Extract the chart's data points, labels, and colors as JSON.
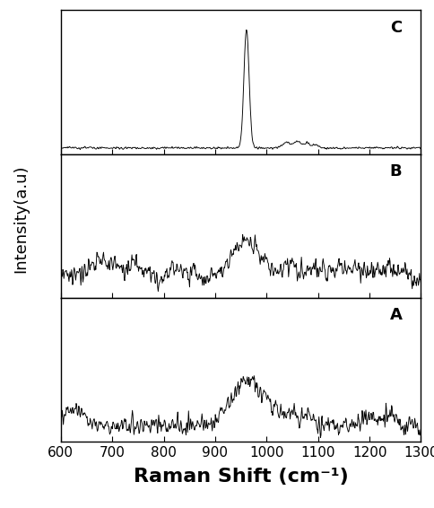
{
  "x_min": 600,
  "x_max": 1300,
  "xlabel": "Raman Shift (cm⁻¹)",
  "ylabel": "Intensity(a.u)",
  "labels": [
    "C",
    "B",
    "A"
  ],
  "background_color": "#ffffff",
  "line_color": "#000000",
  "tick_label_size": 11,
  "xlabel_size": 16,
  "ylabel_size": 13,
  "seed": 42,
  "n_points": 700
}
